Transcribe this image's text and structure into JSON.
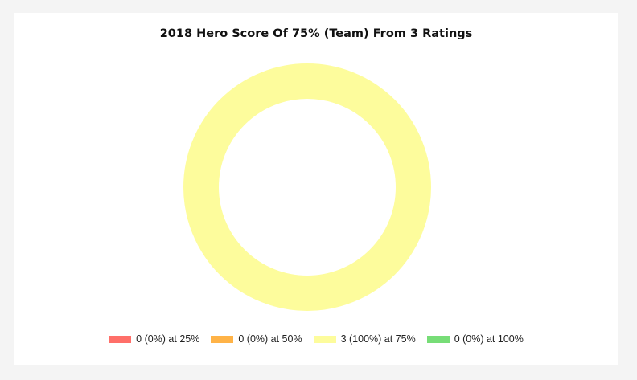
{
  "chart_data": {
    "type": "pie",
    "title": "2018 Hero Score Of 75% (Team) From 3 Ratings",
    "donut": true,
    "legend_position": "bottom",
    "slices": [
      {
        "label": "0 (0%) at 25%",
        "value": 0,
        "percent": 0,
        "score": "25%",
        "color": "#ff6f69"
      },
      {
        "label": "0 (0%) at 50%",
        "value": 0,
        "percent": 0,
        "score": "50%",
        "color": "#ffb347"
      },
      {
        "label": "3 (100%) at 75%",
        "value": 3,
        "percent": 100,
        "score": "75%",
        "color": "#fdfc9c"
      },
      {
        "label": "0 (0%) at 100%",
        "value": 0,
        "percent": 0,
        "score": "100%",
        "color": "#77dd77"
      }
    ]
  }
}
